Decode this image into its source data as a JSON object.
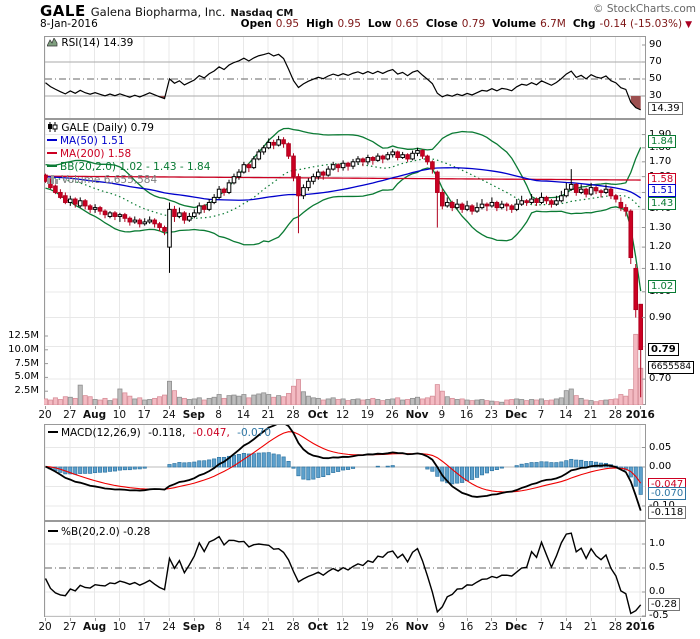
{
  "header": {
    "symbol": "GALE",
    "company": "Galena Biopharma, Inc.",
    "exchange": "Nasdaq CM",
    "site": "© StockCharts.com",
    "date": "8-Jan-2016",
    "quote": [
      {
        "label": "Open",
        "value": "0.95"
      },
      {
        "label": "High",
        "value": "0.95"
      },
      {
        "label": "Low",
        "value": "0.65"
      },
      {
        "label": "Close",
        "value": "0.79"
      },
      {
        "label": "Volume",
        "value": "6.7M"
      },
      {
        "label": "Chg",
        "value": "-0.14 (-15.03%)"
      }
    ],
    "chg_direction": "▼"
  },
  "legends": {
    "rsi": "RSI(14) 14.39",
    "symbol": "GALE (Daily) 0.79",
    "ma50": "MA(50) 1.51",
    "ma200": "MA(200) 1.58",
    "bb": "BB(20,2.0) 1.02 - 1.43 - 1.84",
    "volume": "Volume 6,655,584",
    "macd": {
      "label": "MACD(12,26,9)",
      "v1": "-0.118,",
      "v2": "-0.047,",
      "v3": "-0.070"
    },
    "pb": "%B(20,2.0) -0.28"
  },
  "colors": {
    "candle_up_fill": "#ffffff",
    "candle_up_stroke": "#000000",
    "candle_down": "#cc0022",
    "candle_down_stroke": "#b0001e",
    "ma50": "#0000cc",
    "ma200": "#cc0022",
    "bb": "#0a7a33",
    "vol_up_fill": "#bdbdbd",
    "vol_up_stroke": "#8f8f8f",
    "vol_down_fill": "#f3bac2",
    "vol_down_stroke": "#d78f99",
    "macd_hist_fill": "#5da0cc",
    "macd_hist_stroke": "#2e75a3",
    "macd_line": "#000000",
    "macd_signal": "#ee0000",
    "rsi_line": "#000000",
    "rsi_fill": "#9c4f4f",
    "grid": "#e8e8e8",
    "guide": "#aaaaaa",
    "dashdot": "#666666",
    "border": "#999999"
  },
  "chart_data": [
    {
      "type": "candlestick",
      "title": "GALE (Daily)",
      "last_close": 0.79,
      "log_scale": true,
      "ylim": [
        0.635,
        2.0
      ],
      "yticks": [
        {
          "v": 1.9,
          "t": "1.90"
        },
        {
          "v": 1.8,
          "t": "1.80"
        },
        {
          "v": 1.7,
          "t": "1.70"
        },
        {
          "v": 1.6,
          "t": "1.60"
        },
        {
          "v": 1.5,
          "t": "1.50"
        },
        {
          "v": 1.4,
          "t": "1.40"
        },
        {
          "v": 1.3,
          "t": "1.30"
        },
        {
          "v": 1.2,
          "t": "1.20"
        },
        {
          "v": 1.1,
          "t": "1.10"
        },
        {
          "v": 1.0,
          "t": "1.00"
        },
        {
          "v": 0.9,
          "t": "0.90"
        },
        {
          "v": 0.7,
          "t": "0.70"
        }
      ],
      "callouts": [
        {
          "v": 1.84,
          "t": "1.84",
          "c": "g"
        },
        {
          "v": 1.58,
          "t": "1.58",
          "c": "r"
        },
        {
          "v": 1.51,
          "t": "1.51",
          "c": "b"
        },
        {
          "v": 1.43,
          "t": "1.43",
          "c": "g"
        },
        {
          "v": 1.02,
          "t": "1.02",
          "c": "g"
        },
        {
          "v": 0.79,
          "t": "0.79",
          "c": "k"
        },
        {
          "y": 368,
          "t": "6655584",
          "c": "kt"
        }
      ],
      "volume_ticks": [
        {
          "v": 12.5,
          "t": "12.5M"
        },
        {
          "v": 10.0,
          "t": "10.0M"
        },
        {
          "v": 7.5,
          "t": "7.5M"
        },
        {
          "v": 5.0,
          "t": "5.0M"
        },
        {
          "v": 2.5,
          "t": "2.5M"
        }
      ],
      "overlays": [
        {
          "name": "MA(50)",
          "last": 1.51
        },
        {
          "name": "MA(200)",
          "last": 1.58
        },
        {
          "name": "BB(20,2.0)",
          "last": [
            1.02,
            1.43,
            1.84
          ]
        }
      ],
      "volume_unit": "millions",
      "x_ticks": [
        {
          "t": "20"
        },
        {
          "t": "27"
        },
        {
          "t": "Aug",
          "b": 1
        },
        {
          "t": "10"
        },
        {
          "t": "17"
        },
        {
          "t": "24"
        },
        {
          "t": "Sep",
          "b": 1
        },
        {
          "t": "8"
        },
        {
          "t": "14"
        },
        {
          "t": "21"
        },
        {
          "t": "28"
        },
        {
          "t": "Oct",
          "b": 1
        },
        {
          "t": "12"
        },
        {
          "t": "19"
        },
        {
          "t": "26"
        },
        {
          "t": "Nov",
          "b": 1
        },
        {
          "t": "9"
        },
        {
          "t": "16"
        },
        {
          "t": "23"
        },
        {
          "t": "Dec",
          "b": 1
        },
        {
          "t": "7"
        },
        {
          "t": "14"
        },
        {
          "t": "21"
        },
        {
          "t": "28"
        },
        {
          "t": "2016",
          "b": 1
        }
      ],
      "ohlcv": [
        [
          1.61,
          1.62,
          1.56,
          1.57,
          1.1
        ],
        [
          1.57,
          1.59,
          1.52,
          1.53,
          0.9
        ],
        [
          1.54,
          1.55,
          1.49,
          1.5,
          1.3
        ],
        [
          1.5,
          1.52,
          1.46,
          1.47,
          1.0
        ],
        [
          1.48,
          1.5,
          1.43,
          1.44,
          1.5
        ],
        [
          1.44,
          1.48,
          1.42,
          1.46,
          1.4
        ],
        [
          1.46,
          1.47,
          1.41,
          1.43,
          1.2
        ],
        [
          1.42,
          1.47,
          1.41,
          1.45,
          3.6
        ],
        [
          1.45,
          1.46,
          1.4,
          1.42,
          1.7
        ],
        [
          1.42,
          1.43,
          1.38,
          1.4,
          1.5
        ],
        [
          1.4,
          1.43,
          1.38,
          1.41,
          1.0
        ],
        [
          1.41,
          1.42,
          1.37,
          1.39,
          0.9
        ],
        [
          1.39,
          1.4,
          1.35,
          1.37,
          1.2
        ],
        [
          1.36,
          1.39,
          1.35,
          1.38,
          0.8
        ],
        [
          1.38,
          1.39,
          1.34,
          1.36,
          1.1
        ],
        [
          1.36,
          1.38,
          1.33,
          1.37,
          2.9
        ],
        [
          1.37,
          1.38,
          1.33,
          1.35,
          2.2
        ],
        [
          1.35,
          1.36,
          1.31,
          1.33,
          1.6
        ],
        [
          1.33,
          1.36,
          1.32,
          1.34,
          1.1
        ],
        [
          1.34,
          1.35,
          1.3,
          1.32,
          1.3
        ],
        [
          1.32,
          1.35,
          1.31,
          1.33,
          0.9
        ],
        [
          1.33,
          1.36,
          1.32,
          1.34,
          1.0
        ],
        [
          1.34,
          1.35,
          1.3,
          1.32,
          1.2
        ],
        [
          1.32,
          1.33,
          1.28,
          1.3,
          1.5
        ],
        [
          1.3,
          1.31,
          1.26,
          1.28,
          1.8
        ],
        [
          1.2,
          1.44,
          1.08,
          1.4,
          4.3
        ],
        [
          1.4,
          1.42,
          1.33,
          1.36,
          2.6
        ],
        [
          1.36,
          1.41,
          1.35,
          1.38,
          1.4
        ],
        [
          1.38,
          1.39,
          1.32,
          1.34,
          1.2
        ],
        [
          1.34,
          1.38,
          1.33,
          1.36,
          1.0
        ],
        [
          1.36,
          1.4,
          1.35,
          1.38,
          1.1
        ],
        [
          1.38,
          1.44,
          1.37,
          1.42,
          1.3
        ],
        [
          1.42,
          1.43,
          1.38,
          1.4,
          0.9
        ],
        [
          1.4,
          1.46,
          1.39,
          1.44,
          1.2
        ],
        [
          1.44,
          1.49,
          1.43,
          1.47,
          1.4
        ],
        [
          1.47,
          1.54,
          1.46,
          1.52,
          1.9
        ],
        [
          1.52,
          1.53,
          1.48,
          1.5,
          1.2
        ],
        [
          1.5,
          1.58,
          1.49,
          1.56,
          1.7
        ],
        [
          1.56,
          1.62,
          1.55,
          1.6,
          1.8
        ],
        [
          1.6,
          1.65,
          1.58,
          1.63,
          1.6
        ],
        [
          1.63,
          1.7,
          1.62,
          1.68,
          1.9
        ],
        [
          1.68,
          1.69,
          1.63,
          1.66,
          1.3
        ],
        [
          1.66,
          1.74,
          1.65,
          1.72,
          1.8
        ],
        [
          1.72,
          1.79,
          1.71,
          1.77,
          2.0
        ],
        [
          1.77,
          1.82,
          1.75,
          1.8,
          2.2
        ],
        [
          1.8,
          1.87,
          1.79,
          1.84,
          1.9
        ],
        [
          1.84,
          1.86,
          1.79,
          1.82,
          1.4
        ],
        [
          1.82,
          1.89,
          1.81,
          1.86,
          1.7
        ],
        [
          1.86,
          1.88,
          1.8,
          1.83,
          1.5
        ],
        [
          1.83,
          1.84,
          1.72,
          1.74,
          2.1
        ],
        [
          1.74,
          1.76,
          1.57,
          1.6,
          3.4
        ],
        [
          1.6,
          1.62,
          1.27,
          1.48,
          4.6
        ],
        [
          1.48,
          1.55,
          1.46,
          1.53,
          2.4
        ],
        [
          1.53,
          1.59,
          1.51,
          1.57,
          1.6
        ],
        [
          1.57,
          1.62,
          1.55,
          1.6,
          1.3
        ],
        [
          1.6,
          1.65,
          1.58,
          1.63,
          1.2
        ],
        [
          1.63,
          1.64,
          1.58,
          1.61,
          0.9
        ],
        [
          1.61,
          1.67,
          1.6,
          1.65,
          1.1
        ],
        [
          1.65,
          1.7,
          1.64,
          1.68,
          1.3
        ],
        [
          1.68,
          1.69,
          1.63,
          1.66,
          1.0
        ],
        [
          1.66,
          1.71,
          1.64,
          1.69,
          1.1
        ],
        [
          1.69,
          1.7,
          1.64,
          1.67,
          0.8
        ],
        [
          1.67,
          1.72,
          1.65,
          1.7,
          1.0
        ],
        [
          1.7,
          1.74,
          1.68,
          1.72,
          1.1
        ],
        [
          1.72,
          1.73,
          1.67,
          1.7,
          0.9
        ],
        [
          1.7,
          1.75,
          1.68,
          1.73,
          1.0
        ],
        [
          1.73,
          1.74,
          1.68,
          1.71,
          1.2
        ],
        [
          1.71,
          1.76,
          1.7,
          1.74,
          1.0
        ],
        [
          1.74,
          1.75,
          1.69,
          1.72,
          0.8
        ],
        [
          1.72,
          1.77,
          1.71,
          1.75,
          1.0
        ],
        [
          1.75,
          1.79,
          1.73,
          1.77,
          1.1
        ],
        [
          1.77,
          1.78,
          1.71,
          1.73,
          1.3
        ],
        [
          1.73,
          1.77,
          1.72,
          1.75,
          0.9
        ],
        [
          1.75,
          1.76,
          1.7,
          1.72,
          1.0
        ],
        [
          1.72,
          1.78,
          1.71,
          1.76,
          1.2
        ],
        [
          1.76,
          1.8,
          1.74,
          1.78,
          1.4
        ],
        [
          1.78,
          1.79,
          1.72,
          1.74,
          1.1
        ],
        [
          1.74,
          1.75,
          1.68,
          1.7,
          1.3
        ],
        [
          1.7,
          1.71,
          1.62,
          1.65,
          1.6
        ],
        [
          1.63,
          1.64,
          1.3,
          1.5,
          3.7
        ],
        [
          1.5,
          1.52,
          1.4,
          1.42,
          2.5
        ],
        [
          1.42,
          1.47,
          1.41,
          1.44,
          1.5
        ],
        [
          1.44,
          1.45,
          1.39,
          1.41,
          1.2
        ],
        [
          1.41,
          1.46,
          1.4,
          1.43,
          1.0
        ],
        [
          1.43,
          1.44,
          1.38,
          1.4,
          1.1
        ],
        [
          1.4,
          1.45,
          1.39,
          1.42,
          0.9
        ],
        [
          1.42,
          1.43,
          1.37,
          1.39,
          0.8
        ],
        [
          1.39,
          1.44,
          1.38,
          1.41,
          0.9
        ],
        [
          1.41,
          1.46,
          1.4,
          1.43,
          1.0
        ],
        [
          1.43,
          1.44,
          1.39,
          1.42,
          0.8
        ],
        [
          1.42,
          1.47,
          1.41,
          1.44,
          0.7
        ],
        [
          1.44,
          1.45,
          1.39,
          1.41,
          0.6
        ],
        [
          1.41,
          1.45,
          1.4,
          1.43,
          0.5
        ],
        [
          1.43,
          1.44,
          1.39,
          1.42,
          0.9
        ],
        [
          1.42,
          1.43,
          1.38,
          1.4,
          1.0
        ],
        [
          1.4,
          1.46,
          1.39,
          1.43,
          1.1
        ],
        [
          1.43,
          1.48,
          1.42,
          1.45,
          1.0
        ],
        [
          1.45,
          1.46,
          1.42,
          1.44,
          0.8
        ],
        [
          1.44,
          1.49,
          1.43,
          1.46,
          1.0
        ],
        [
          1.46,
          1.47,
          1.42,
          1.44,
          0.9
        ],
        [
          1.44,
          1.5,
          1.43,
          1.47,
          1.1
        ],
        [
          1.47,
          1.48,
          1.43,
          1.45,
          0.8
        ],
        [
          1.45,
          1.46,
          1.41,
          1.43,
          0.9
        ],
        [
          1.43,
          1.48,
          1.42,
          1.45,
          1.1
        ],
        [
          1.45,
          1.51,
          1.44,
          1.48,
          1.3
        ],
        [
          1.48,
          1.56,
          1.47,
          1.52,
          2.6
        ],
        [
          1.52,
          1.65,
          1.51,
          1.55,
          2.9
        ],
        [
          1.55,
          1.56,
          1.48,
          1.5,
          1.7
        ],
        [
          1.5,
          1.55,
          1.49,
          1.52,
          1.2
        ],
        [
          1.52,
          1.53,
          1.47,
          1.49,
          0.9
        ],
        [
          1.49,
          1.56,
          1.48,
          1.53,
          0.8
        ],
        [
          1.53,
          1.54,
          1.49,
          1.51,
          0.6
        ],
        [
          1.51,
          1.52,
          1.47,
          1.5,
          0.8
        ],
        [
          1.5,
          1.55,
          1.49,
          1.52,
          0.9
        ],
        [
          1.52,
          1.53,
          1.46,
          1.48,
          1.0
        ],
        [
          1.48,
          1.49,
          1.44,
          1.46,
          1.1
        ],
        [
          1.44,
          1.47,
          1.39,
          1.41,
          1.9
        ],
        [
          1.41,
          1.43,
          1.36,
          1.39,
          1.6
        ],
        [
          1.39,
          1.4,
          1.12,
          1.15,
          2.8
        ],
        [
          1.1,
          1.12,
          0.9,
          0.93,
          12.8
        ],
        [
          0.95,
          0.95,
          0.65,
          0.79,
          6.655584
        ]
      ]
    },
    {
      "type": "line",
      "title": "RSI(14)",
      "computed_from": "ohlcv",
      "last": 14.39,
      "ylim": [
        0,
        100
      ],
      "guides_solid": [
        70,
        30
      ],
      "guides_dashdot": [
        50
      ],
      "yticks": [
        {
          "v": 90,
          "t": "90"
        },
        {
          "v": 70,
          "t": "70"
        },
        {
          "v": 50,
          "t": "50"
        },
        {
          "v": 30,
          "t": "30"
        }
      ],
      "callouts": [
        {
          "v": 14.39,
          "t": "14.39",
          "c": "gy"
        }
      ]
    },
    {
      "type": "line+histogram",
      "title": "MACD(12,26,9)",
      "computed_from": "ohlcv",
      "last_macd": -0.118,
      "last_signal": -0.047,
      "last_hist": -0.07,
      "ylim": [
        -0.13,
        0.07
      ],
      "yticks": [
        {
          "v": 0.05,
          "t": "0.05"
        },
        {
          "v": 0.0,
          "t": "0.00"
        },
        {
          "v": -0.1,
          "t": "-0.10"
        }
      ],
      "callouts": [
        {
          "v": -0.047,
          "t": "-0.047",
          "c": "r"
        },
        {
          "v": -0.07,
          "t": "-0.070",
          "c": "sb"
        },
        {
          "v": -0.118,
          "t": "-0.118",
          "c": "gy"
        }
      ]
    },
    {
      "type": "line",
      "title": "%B(20,2.0)",
      "computed_from": "ohlcv",
      "last": -0.28,
      "ylim": [
        -0.55,
        1.35
      ],
      "guides_dashdot": [
        0.5
      ],
      "yticks": [
        {
          "v": 1.0,
          "t": "1.0"
        },
        {
          "v": 0.5,
          "t": "0.5"
        },
        {
          "v": 0.0,
          "t": "0.0"
        },
        {
          "v": -0.5,
          "t": "-0.5"
        }
      ],
      "callouts": [
        {
          "v": -0.28,
          "t": "-0.28",
          "c": "gy"
        }
      ]
    }
  ]
}
